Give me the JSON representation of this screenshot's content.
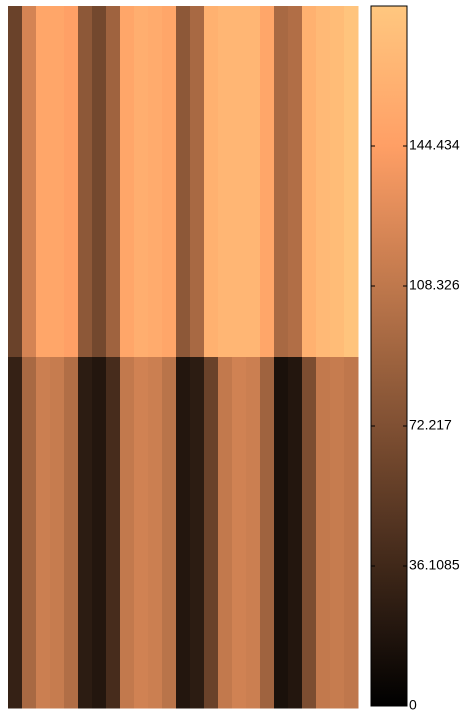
{
  "chart_data": {
    "type": "heatmap",
    "values": [
      [
        60,
        120,
        150,
        150,
        145,
        80,
        65,
        90,
        150,
        158,
        155,
        150,
        80,
        95,
        160,
        165,
        165,
        165,
        150,
        95,
        100,
        160,
        168,
        170,
        178
      ],
      [
        30,
        95,
        115,
        112,
        100,
        25,
        20,
        40,
        110,
        118,
        115,
        105,
        20,
        25,
        60,
        110,
        118,
        115,
        90,
        15,
        20,
        70,
        110,
        112,
        108
      ]
    ],
    "colormap": "copper",
    "clim": [
      0,
      180.54
    ],
    "cticks": [
      0,
      36.1085,
      72.217,
      108.326,
      144.434
    ]
  }
}
